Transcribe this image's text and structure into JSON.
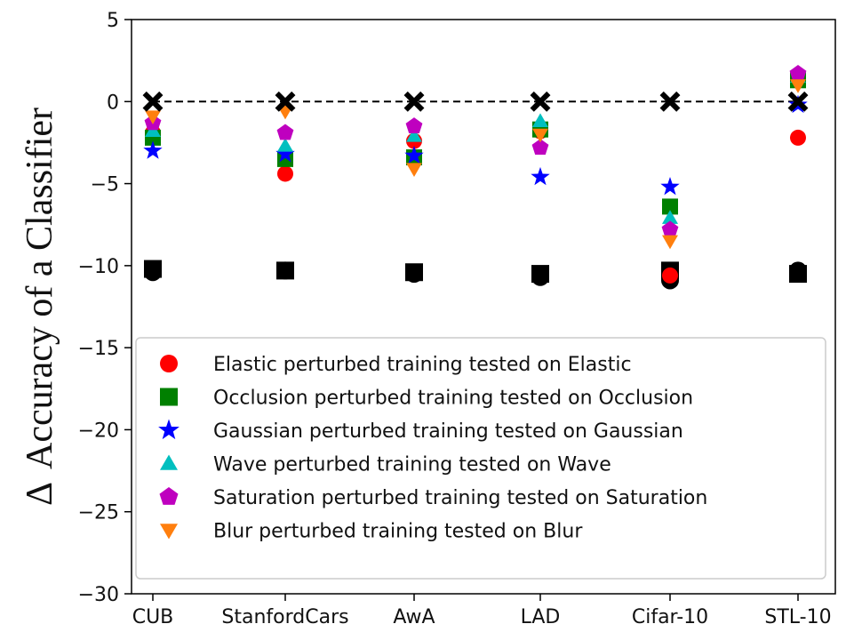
{
  "chart_data": {
    "type": "scatter",
    "title": "",
    "xlabel": "",
    "ylabel": "Δ Accuracy of a Classifier",
    "ylabel_symbol": "Δ",
    "ylabel_text": "Accuracy of a Classifier",
    "categories": [
      "CUB",
      "StanfordCars",
      "AwA",
      "LAD",
      "Cifar-10",
      "STL-10"
    ],
    "ylim": [
      -30,
      5
    ],
    "yticks": [
      5,
      0,
      -5,
      -10,
      -15,
      -20,
      -25,
      -30
    ],
    "ytick_labels": [
      "5",
      "0",
      "−5",
      "−10",
      "−15",
      "−20",
      "−25",
      "−30"
    ],
    "baseline": 0,
    "legend_position": "lower-center",
    "series": [
      {
        "name": "Elastic perturbed training tested on Elastic",
        "marker": "circle",
        "color": "#ff0000",
        "values": [
          -1.9,
          -4.4,
          -2.4,
          -1.8,
          -10.6,
          -2.2
        ]
      },
      {
        "name": "Occlusion perturbed training tested on Occlusion",
        "marker": "square",
        "color": "#008000",
        "values": [
          -2.2,
          -3.5,
          -3.4,
          -1.7,
          -6.4,
          1.3
        ]
      },
      {
        "name": "Gaussian perturbed training tested on Gaussian",
        "marker": "star",
        "color": "#0000ff",
        "values": [
          -3.0,
          -3.2,
          -3.3,
          -4.6,
          -5.2,
          -0.2
        ]
      },
      {
        "name": "Wave perturbed training tested on Wave",
        "marker": "triangle-up",
        "color": "#00bfbf",
        "values": [
          -1.8,
          -2.7,
          -2.1,
          -1.2,
          -7.1,
          1.5
        ]
      },
      {
        "name": "Saturation perturbed training tested on Saturation",
        "marker": "pentagon",
        "color": "#bf00bf",
        "values": [
          -1.3,
          -1.9,
          -1.5,
          -2.8,
          -7.8,
          1.7
        ]
      },
      {
        "name": "Blur perturbed training tested on Blur",
        "marker": "triangle-down",
        "color": "#ff7f0e",
        "values": [
          -0.9,
          -0.6,
          -4.1,
          -2.0,
          -8.5,
          1.0
        ]
      }
    ],
    "reference_markers": {
      "color": "#000000",
      "x_markers": {
        "marker": "x",
        "values": [
          0,
          0,
          0,
          0,
          0,
          0
        ]
      },
      "baseline_markers": {
        "marker": "square",
        "values": [
          -10.2,
          -10.3,
          -10.4,
          -10.5,
          -10.3,
          -10.5
        ]
      },
      "baseline_markers_extra": {
        "marker": "circle",
        "values": [
          -10.4,
          -10.3,
          -10.5,
          -10.7,
          -10.9,
          -10.3
        ]
      }
    }
  }
}
